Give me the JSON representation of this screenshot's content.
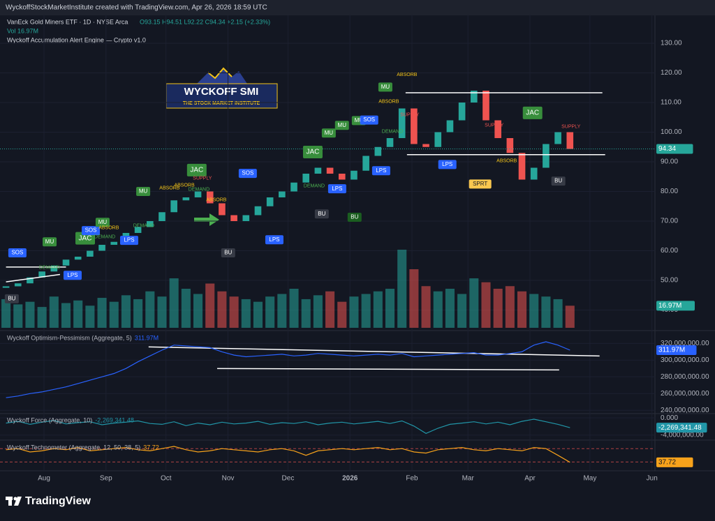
{
  "header": {
    "credit": "WyckoffStockMarketInstitute created with TradingView.com, Apr 26, 2026 18:59 UTC",
    "symbol": "VanEck Gold Miners ETF · 1D · NYSE Arca",
    "ohlc": "O93.15 H94.51 L92.22 C94.34 +2.15 (+2.33%)",
    "volume": "Vol 16.97M",
    "indicator": "Wyckoff Accumulation Alert Engine — Crypto v1.0"
  },
  "logo": {
    "title": "WYCKOFF SMI",
    "subtitle": "THE STOCK MARKET INSTITUTE"
  },
  "footer": "TradingView",
  "chart_data": [
    {
      "type": "candlestick",
      "x": [
        12,
        18,
        24,
        30,
        36,
        42,
        48,
        54,
        60,
        66,
        72,
        78,
        84,
        90,
        96,
        102,
        108,
        114,
        120,
        126,
        132,
        138,
        144,
        150,
        156,
        162,
        168,
        174,
        180,
        186,
        192,
        198,
        204,
        210,
        216,
        222,
        228,
        234,
        240,
        246,
        252,
        258,
        264,
        270,
        276,
        282,
        288,
        294
      ],
      "open": [
        47.5,
        48,
        49,
        51,
        53,
        55,
        57,
        58,
        60,
        62,
        63,
        66,
        68,
        70,
        73,
        77,
        78,
        80,
        76,
        72,
        70,
        72,
        75,
        78,
        80,
        83,
        86,
        88,
        86,
        84,
        87,
        92,
        95,
        98,
        108,
        96,
        95,
        100,
        104,
        110,
        114,
        104,
        98,
        93,
        84,
        88,
        96,
        100
      ],
      "close": [
        48,
        49,
        51,
        53,
        55,
        57,
        58,
        60,
        62,
        63,
        66,
        68,
        70,
        73,
        77,
        78,
        80,
        76,
        72,
        70,
        72,
        75,
        78,
        80,
        83,
        86,
        88,
        86,
        84,
        87,
        92,
        95,
        98,
        108,
        96,
        95,
        100,
        104,
        110,
        114,
        104,
        98,
        93,
        84,
        88,
        96,
        100,
        94.34
      ],
      "up_color": "#26a69a",
      "down_color": "#ef5350",
      "xlim": [
        9,
        336.5
      ],
      "xticks": [
        {
          "value": 31,
          "label": "Aug"
        },
        {
          "value": 62,
          "label": "Sep"
        },
        {
          "value": 92,
          "label": "Oct"
        },
        {
          "value": 123,
          "label": "Nov"
        },
        {
          "value": 153,
          "label": "Dec"
        },
        {
          "value": 184,
          "label": "2026"
        },
        {
          "value": 215,
          "label": "Feb"
        },
        {
          "value": 243,
          "label": "Mar"
        },
        {
          "value": 274,
          "label": "Apr"
        },
        {
          "value": 304,
          "label": "May"
        },
        {
          "value": 335,
          "label": "Jun"
        }
      ],
      "ylim": [
        34,
        138
      ],
      "yticks": [
        {
          "value": 40,
          "label": "40.00"
        },
        {
          "value": 50,
          "label": "50.00"
        },
        {
          "value": 60,
          "label": "60.00"
        },
        {
          "value": 70,
          "label": "70.00"
        },
        {
          "value": 80,
          "label": "80.00"
        },
        {
          "value": 90,
          "label": "90.00"
        },
        {
          "value": 100,
          "label": "100.00"
        },
        {
          "value": 110,
          "label": "110.00"
        },
        {
          "value": 120,
          "label": "120.00"
        },
        {
          "value": 130,
          "label": "130.00"
        }
      ],
      "annotations": [
        {
          "text": "SOS",
          "x": 17.7,
          "y": 59.3,
          "color": "#2962ff",
          "box": true
        },
        {
          "text": "MU",
          "x": 33.8,
          "y": 63.0,
          "color": "#388e3c",
          "box": true
        },
        {
          "text": "JAC",
          "x": 51.6,
          "y": 64.2,
          "color": "#388e3c",
          "box": true
        },
        {
          "text": "SOS",
          "x": 54.4,
          "y": 66.8,
          "color": "#2962ff",
          "box": true
        },
        {
          "text": "MU",
          "x": 60.3,
          "y": 69.6,
          "color": "#388e3c",
          "box": true
        },
        {
          "text": "LPS",
          "x": 73.6,
          "y": 63.5,
          "color": "#2962ff",
          "box": true
        },
        {
          "text": "LPS",
          "x": 45.3,
          "y": 51.7,
          "color": "#2962ff",
          "box": true
        },
        {
          "text": "BU",
          "x": 14.9,
          "y": 43.8,
          "color": "#363a45",
          "box": true
        },
        {
          "text": "MU",
          "x": 80.6,
          "y": 80.0,
          "color": "#388e3c",
          "box": true
        },
        {
          "text": "JAC",
          "x": 107.4,
          "y": 87.2,
          "color": "#388e3c",
          "box": true
        },
        {
          "text": "SOS",
          "x": 132.9,
          "y": 86.1,
          "color": "#2962ff",
          "box": true
        },
        {
          "text": "BU",
          "x": 123.1,
          "y": 59.3,
          "color": "#363a45",
          "box": true
        },
        {
          "text": "LPS",
          "x": 146.2,
          "y": 63.7,
          "color": "#2962ff",
          "box": true
        },
        {
          "text": "JAC",
          "x": 165.4,
          "y": 93.3,
          "color": "#388e3c",
          "box": true
        },
        {
          "text": "MU",
          "x": 173.4,
          "y": 99.7,
          "color": "#388e3c",
          "box": true
        },
        {
          "text": "MU",
          "x": 180.0,
          "y": 102.3,
          "color": "#388e3c",
          "box": true
        },
        {
          "text": "MU",
          "x": 188.4,
          "y": 103.9,
          "color": "#388e3c",
          "box": true
        },
        {
          "text": "SOS",
          "x": 193.6,
          "y": 104.1,
          "color": "#2962ff",
          "box": true
        },
        {
          "text": "LPS",
          "x": 177.6,
          "y": 80.9,
          "color": "#2962ff",
          "box": true
        },
        {
          "text": "LPS",
          "x": 199.6,
          "y": 87.0,
          "color": "#2962ff",
          "box": true
        },
        {
          "text": "BU",
          "x": 169.9,
          "y": 72.4,
          "color": "#363a45",
          "box": true
        },
        {
          "text": "BU",
          "x": 186.3,
          "y": 71.3,
          "color": "#1b5e20",
          "box": true
        },
        {
          "text": "MU",
          "x": 201.7,
          "y": 115.2,
          "color": "#388e3c",
          "box": true
        },
        {
          "text": "JAC",
          "x": 275.3,
          "y": 106.5,
          "color": "#388e3c",
          "box": true
        },
        {
          "text": "LPS",
          "x": 232.7,
          "y": 89.1,
          "color": "#2962ff",
          "box": true
        },
        {
          "text": "SPRT",
          "x": 249.1,
          "y": 82.5,
          "color": "#f9c74f",
          "box": true
        },
        {
          "text": "BU",
          "x": 288.2,
          "y": 83.5,
          "color": "#363a45",
          "box": true
        },
        {
          "text": "ABSORB",
          "x": 212.5,
          "y": 119.4,
          "color": "#f5c518",
          "box": false
        },
        {
          "text": "ABSORB",
          "x": 203.4,
          "y": 110.3,
          "color": "#f5c518",
          "box": false
        },
        {
          "text": "SUPPLY",
          "x": 213.9,
          "y": 105.8,
          "color": "#ef5350",
          "box": false
        },
        {
          "text": "DEMAND",
          "x": 205.2,
          "y": 100.2,
          "color": "#4caf50",
          "box": false
        },
        {
          "text": "SUPPLY",
          "x": 256.1,
          "y": 102.3,
          "color": "#ef5350",
          "box": false
        },
        {
          "text": "SUPPLY",
          "x": 294.5,
          "y": 101.8,
          "color": "#ef5350",
          "box": false
        },
        {
          "text": "ABSORB",
          "x": 262.4,
          "y": 90.3,
          "color": "#f5c518",
          "box": false
        },
        {
          "text": "ABSORB",
          "x": 93.8,
          "y": 81.1,
          "color": "#f5c518",
          "box": false
        },
        {
          "text": "ABSORB",
          "x": 101.2,
          "y": 82.1,
          "color": "#f5c518",
          "box": false
        },
        {
          "text": "DEMAND",
          "x": 108.5,
          "y": 80.7,
          "color": "#4caf50",
          "box": false
        },
        {
          "text": "SUPPLY",
          "x": 110.2,
          "y": 84.4,
          "color": "#ef5350",
          "box": false
        },
        {
          "text": "ABSORB",
          "x": 117.2,
          "y": 77.1,
          "color": "#f5c518",
          "box": false
        },
        {
          "text": "DEMAND",
          "x": 80.9,
          "y": 68.4,
          "color": "#4caf50",
          "box": false
        },
        {
          "text": "ABSORB",
          "x": 63.4,
          "y": 67.7,
          "color": "#f5c518",
          "box": false
        },
        {
          "text": "DEMAND",
          "x": 61.4,
          "y": 64.7,
          "color": "#4caf50",
          "box": false
        },
        {
          "text": "DEMAND",
          "x": 166.1,
          "y": 81.8,
          "color": "#4caf50",
          "box": false
        },
        {
          "text": "DEMAND",
          "x": 33.8,
          "y": 54.3,
          "color": "#4caf50",
          "box": false
        }
      ],
      "trendlines": [
        {
          "x": [
            211.8,
            310.2
          ],
          "y": [
            113.3,
            113.3
          ]
        },
        {
          "x": [
            212.5,
            311.6
          ],
          "y": [
            92.4,
            92.4
          ]
        },
        {
          "x": [
            12,
            42
          ],
          "y": [
            54.5,
            54.5
          ]
        },
        {
          "x": [
            12,
            39
          ],
          "y": [
            49.5,
            52
          ]
        }
      ]
    },
    {
      "type": "bar",
      "values": [
        22000000,
        18000000,
        20000000,
        16000000,
        24000000,
        19000000,
        21000000,
        17000000,
        23000000,
        20000000,
        25000000,
        22000000,
        28000000,
        24000000,
        38000000,
        30000000,
        26000000,
        34000000,
        28000000,
        24000000,
        22000000,
        20000000,
        24000000,
        26000000,
        30000000,
        22000000,
        25000000,
        28000000,
        20000000,
        24000000,
        26000000,
        28000000,
        30000000,
        60000000,
        45000000,
        32000000,
        28000000,
        30000000,
        26000000,
        38000000,
        35000000,
        30000000,
        32000000,
        28000000,
        26000000,
        24000000,
        22000000,
        16970000
      ],
      "ylim": [
        0,
        60000000
      ],
      "last_label": "16.97M"
    },
    {
      "type": "line",
      "title": "Wyckoff Optimism-Pessimism (Aggregate, 5)",
      "last_label": "311.97M",
      "color": "#2962ff",
      "values": [
        255000000,
        257000000,
        260000000,
        262000000,
        265000000,
        268000000,
        272000000,
        276000000,
        280000000,
        284000000,
        290000000,
        298000000,
        305000000,
        312000000,
        318000000,
        317000000,
        316000000,
        315000000,
        310000000,
        306000000,
        304000000,
        305000000,
        306000000,
        307000000,
        305000000,
        306000000,
        308000000,
        307000000,
        306000000,
        305000000,
        306000000,
        307000000,
        306000000,
        308000000,
        304000000,
        305000000,
        306000000,
        307000000,
        308000000,
        309000000,
        306000000,
        306000000,
        308000000,
        310000000,
        318000000,
        322000000,
        318000000,
        311970000
      ],
      "ylim": [
        236000000,
        332000000
      ],
      "yticks": [
        {
          "value": 240000000,
          "label": "240,000,000.00"
        },
        {
          "value": 260000000,
          "label": "260,000,000.00"
        },
        {
          "value": 280000000,
          "label": "280,000,000.00"
        },
        {
          "value": 300000000,
          "label": "300,000,000.00"
        },
        {
          "value": 320000000,
          "label": "320,000,000.00"
        }
      ],
      "trendlines": [
        {
          "x": [
            83.3,
            308.8
          ],
          "y": [
            315800000,
            305000000
          ]
        },
        {
          "x": [
            117.6,
            288.6
          ],
          "y": [
            290000000,
            288300000
          ]
        }
      ]
    },
    {
      "type": "line",
      "title": "Wyckoff Force (Aggregate, 10)",
      "last_label": "-2,269,341.48",
      "color": "#2196a8",
      "values": [
        -1200000,
        -800000,
        -1500000,
        -1000000,
        -600000,
        -1400000,
        -1100000,
        -900000,
        -1600000,
        -1200000,
        -1000000,
        -700000,
        -1300000,
        -1500000,
        -900000,
        -1800000,
        -1200000,
        -1600000,
        -1000000,
        -1400000,
        -1200000,
        -800000,
        -1500000,
        -1100000,
        -1300000,
        -900000,
        -1600000,
        -1200000,
        -1000000,
        -1400000,
        -1100000,
        -800000,
        -1300000,
        -700000,
        -1900000,
        -3600000,
        -2400000,
        -1500000,
        -1200000,
        -900000,
        -1400000,
        -1000000,
        -1600000,
        -800000,
        -300000,
        -900000,
        -1500000,
        -2269341.48
      ],
      "ylim": [
        -5000000,
        1000000
      ],
      "yticks": [
        {
          "value": 0,
          "label": "0.000"
        },
        {
          "value": -4000000,
          "label": "-4,000,000.00"
        }
      ]
    },
    {
      "type": "line",
      "title": "Wyckoff Technometer (Aggregate, 12, 50, 38, 5)",
      "color": "#f7a21b",
      "values": [
        49,
        50,
        47,
        48,
        50,
        49,
        51,
        48,
        49,
        50,
        51,
        49,
        48,
        50,
        52,
        49,
        47,
        48,
        50,
        49,
        48,
        47,
        49,
        50,
        48,
        44,
        48,
        49,
        50,
        49,
        50,
        51,
        49,
        50,
        47,
        46,
        49,
        50,
        51,
        49,
        48,
        50,
        49,
        48,
        51,
        50,
        44,
        37.72
      ],
      "ylim": [
        32,
        57
      ],
      "levels": [
        50,
        38
      ],
      "level_color": "#ef5350"
    }
  ]
}
